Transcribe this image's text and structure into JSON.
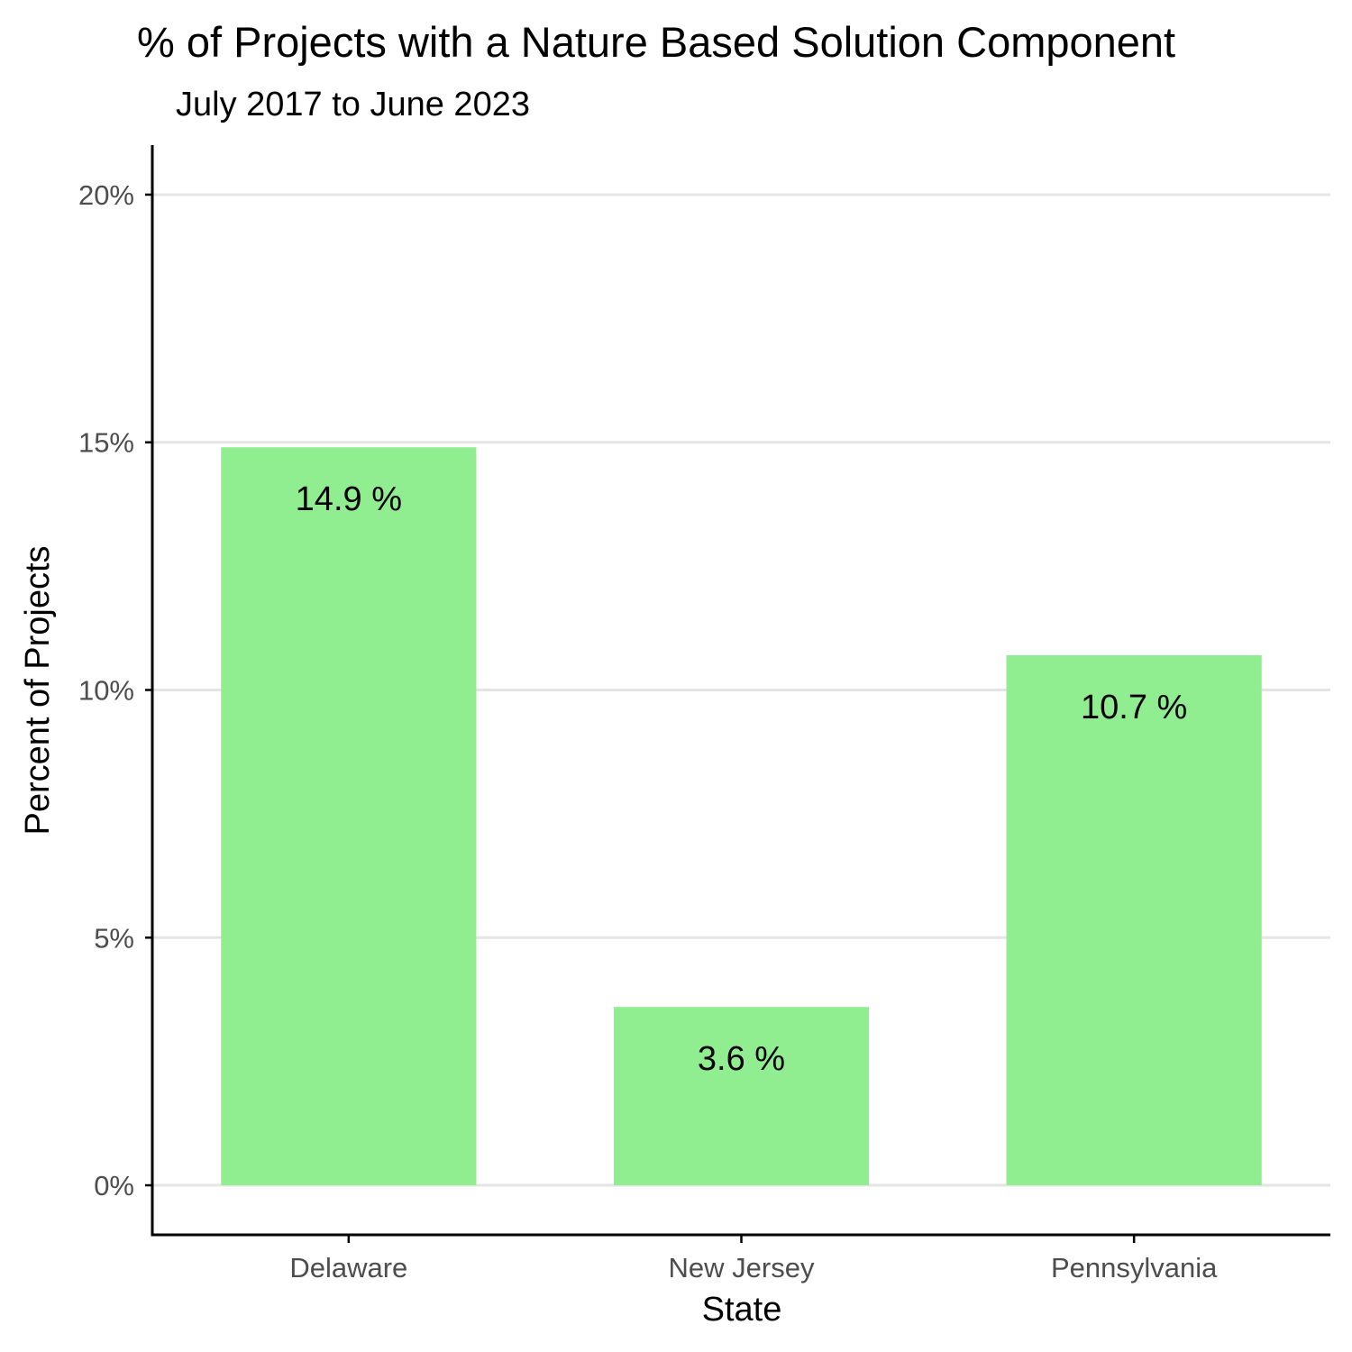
{
  "chart_data": {
    "type": "bar",
    "title": "% of Projects with a Nature Based Solution Component",
    "subtitle": "July 2017 to June 2023",
    "xlabel": "State",
    "ylabel": "Percent of Projects",
    "categories": [
      "Delaware",
      "New Jersey",
      "Pennsylvania"
    ],
    "values": [
      14.9,
      3.6,
      10.7
    ],
    "data_labels": [
      "14.9 %",
      "3.6 %",
      "10.7 %"
    ],
    "yticks": [
      0,
      5,
      10,
      15,
      20
    ],
    "ytick_labels": [
      "0%",
      "5%",
      "10%",
      "15%",
      "20%"
    ],
    "ylim": [
      -1,
      21
    ],
    "grid": "horizontal major",
    "legend": "none",
    "bar_color": "#90ee90",
    "grid_color": "#e5e5e5",
    "axis_color": "#000000"
  }
}
